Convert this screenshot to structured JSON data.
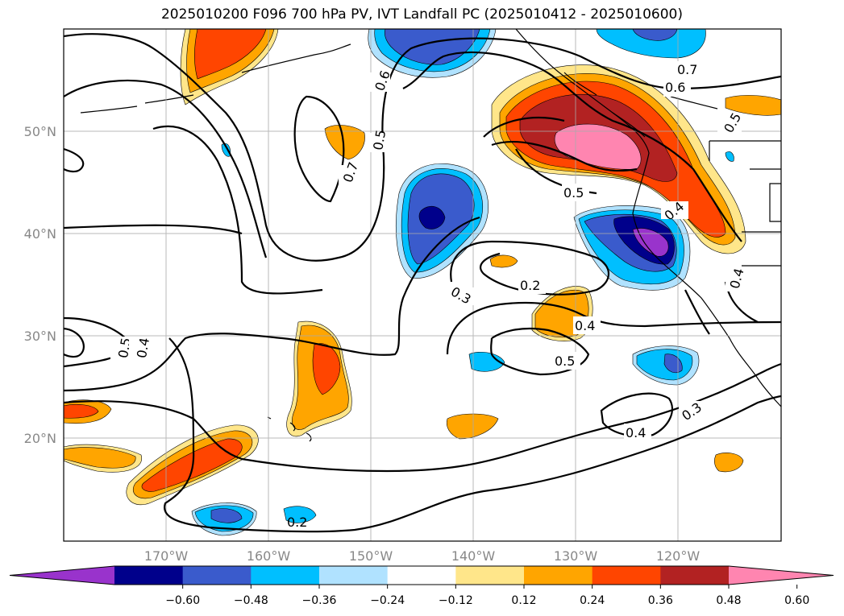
{
  "title": "2025010200 F096 700 hPa PV, IVT Landfall PC (2025010412 - 2025010600)",
  "map": {
    "lon_ticks": [
      "170°W",
      "160°W",
      "150°W",
      "140°W",
      "130°W",
      "120°W"
    ],
    "lat_ticks": [
      "50°N",
      "40°N",
      "30°N",
      "20°N"
    ],
    "grid": true
  },
  "contour_labels": [
    "0.7",
    "0.6",
    "0.5",
    "0.7",
    "0.6",
    "0.5",
    "0.5",
    "0.4",
    "0.4",
    "0.2",
    "0.3",
    "0.4",
    "0.5",
    "0.5",
    "0.4",
    "0.3",
    "0.4",
    "0.2"
  ],
  "colorbar": {
    "colors": [
      "#9933cc",
      "#00008b",
      "#3a5bcc",
      "#00bfff",
      "#b0e2ff",
      "#ffffff",
      "#ffe68a",
      "#ffa500",
      "#ff4500",
      "#b22222",
      "#ff85b0"
    ],
    "tick_labels": [
      "−0.60",
      "−0.48",
      "−0.36",
      "−0.24",
      "−0.12",
      "0.12",
      "0.24",
      "0.36",
      "0.48",
      "0.60"
    ],
    "extend": "both"
  }
}
